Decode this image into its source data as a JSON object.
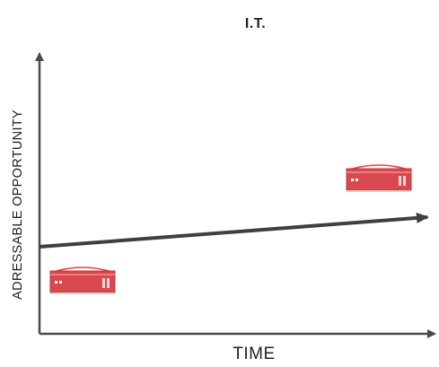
{
  "title": "I.T.",
  "axes": {
    "x_label": "TIME",
    "y_label": "ADRESSABLE OPPORTUNITY"
  },
  "trend": {
    "direction": "rising"
  },
  "icons": [
    {
      "name": "server-icon",
      "position": "lower-left"
    },
    {
      "name": "server-icon",
      "position": "upper-right"
    }
  ],
  "colors": {
    "axis": "#4a4a4a",
    "trend_line": "#3f3f3f",
    "server_body": "#d9484d",
    "server_outline": "#b8383c",
    "text": "#222222"
  }
}
